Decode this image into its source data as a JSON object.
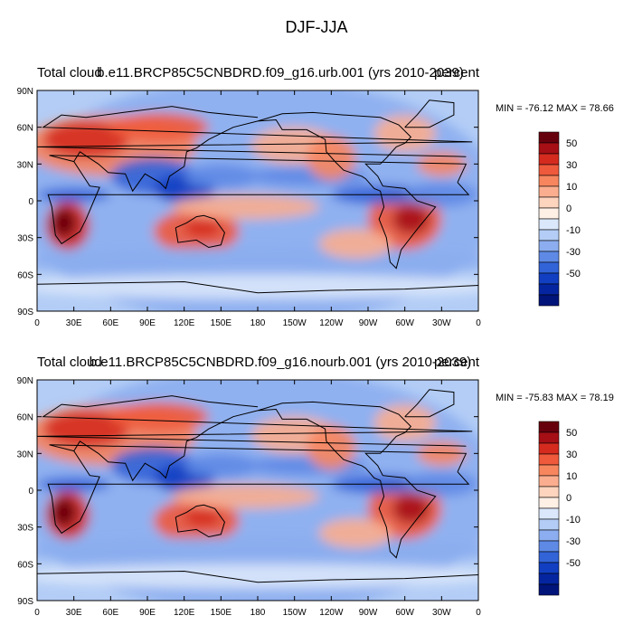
{
  "title": "DJF-JJA",
  "panels": [
    {
      "left_label": "Total cloud",
      "center_label": "b.e11.BRCP85C5CNBDRD.f09_g16.urb.001 (yrs 2010-2039)",
      "right_label": "percent",
      "minmax": "MIN = -76.12 MAX =  78.66"
    },
    {
      "left_label": "Total cloud",
      "center_label": "b.e11.BRCP85C5CNBDRD.f09_g16.nourb.001 (yrs 2010-2039)",
      "right_label": "percent",
      "minmax": "MIN = -75.83 MAX =  78.19"
    }
  ],
  "axes": {
    "lat_labels": [
      "90N",
      "60N",
      "30N",
      "0",
      "30S",
      "60S",
      "90S"
    ],
    "lon_labels": [
      "0",
      "30E",
      "60E",
      "90E",
      "120E",
      "150E",
      "180",
      "150W",
      "120W",
      "90W",
      "60W",
      "30W",
      "0"
    ]
  },
  "colorbar": {
    "labels": [
      "50",
      "30",
      "10",
      "0",
      "-10",
      "-30",
      "-50"
    ],
    "colors": [
      "#67000d",
      "#a50f15",
      "#d52b1f",
      "#ef5a3c",
      "#f7865f",
      "#fbae8f",
      "#fdd4be",
      "#fff0e6",
      "#dbe8fb",
      "#b3cdf6",
      "#8caef0",
      "#5e8ae6",
      "#3264d8",
      "#123fc2",
      "#0525a0",
      "#00147a"
    ]
  }
}
